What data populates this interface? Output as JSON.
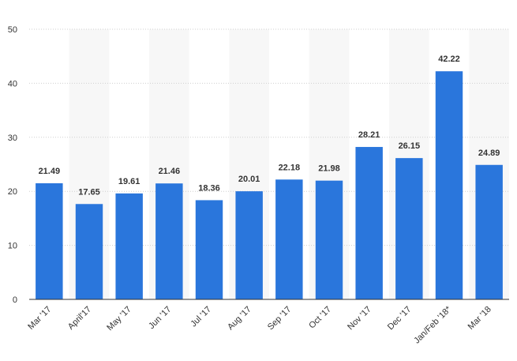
{
  "chart_data": {
    "type": "bar",
    "categories": [
      "Mar '17",
      "April'17",
      "May '17",
      "Jun '17",
      "Jul '17",
      "Aug '17",
      "Sep '17",
      "Oct '17",
      "Nov '17",
      "Dec '17",
      "Jan/Feb '18*",
      "Mar '18"
    ],
    "values": [
      21.49,
      17.65,
      19.61,
      21.46,
      18.36,
      20.01,
      22.18,
      21.98,
      28.21,
      26.15,
      42.22,
      24.89
    ],
    "value_labels": [
      "21.49",
      "17.65",
      "19.61",
      "21.46",
      "18.36",
      "20.01",
      "22.18",
      "21.98",
      "28.21",
      "26.15",
      "42.22",
      "24.89"
    ],
    "title": "",
    "xlabel": "",
    "ylabel": "",
    "ylim": [
      0,
      50
    ],
    "yticks": [
      0,
      10,
      20,
      30,
      40,
      50
    ],
    "ytick_labels": [
      "0",
      "10",
      "20",
      "30",
      "40",
      "50"
    ],
    "grid": true,
    "alternating_bands": true,
    "legend": "none",
    "colors": {
      "bar": "#2a76dc",
      "band": "#f7f7f7",
      "grid": "#cfcfcf",
      "text": "#333333"
    }
  }
}
